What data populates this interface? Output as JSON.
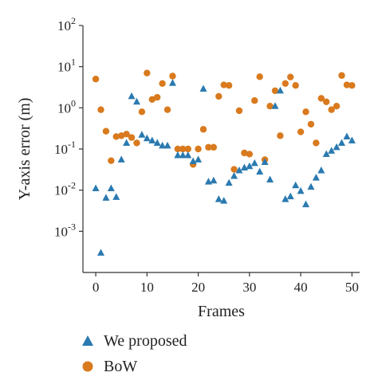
{
  "colors": {
    "we_proposed": "#2a7ab0",
    "bow": "#d97a1e",
    "axis": "#333333"
  },
  "chart_data": {
    "type": "scatter",
    "xlabel": "Frames",
    "ylabel": "Y-axis error (m)",
    "xlim": [
      -2.5,
      51.5
    ],
    "ylim": [
      0.0001,
      100
    ],
    "y_scale": "log",
    "grid": false,
    "legend_position": "bottom-left",
    "x_ticks": [
      {
        "value": 0,
        "label": "0"
      },
      {
        "value": 10,
        "label": "10"
      },
      {
        "value": 20,
        "label": "20"
      },
      {
        "value": 30,
        "label": "30"
      },
      {
        "value": 40,
        "label": "40"
      },
      {
        "value": 50,
        "label": "50"
      }
    ],
    "y_ticks": [
      {
        "value": 0.001,
        "base": "10",
        "exp": "-3"
      },
      {
        "value": 0.01,
        "base": "10",
        "exp": "-2"
      },
      {
        "value": 0.1,
        "base": "10",
        "exp": "-1"
      },
      {
        "value": 1,
        "base": "10",
        "exp": "0"
      },
      {
        "value": 10,
        "base": "10",
        "exp": "1"
      },
      {
        "value": 100,
        "base": "10",
        "exp": "2"
      }
    ],
    "series": [
      {
        "name": "We proposed",
        "marker": "triangle",
        "x": [
          0,
          1,
          2,
          3,
          4,
          5,
          6,
          7,
          8,
          9,
          10,
          11,
          12,
          13,
          14,
          15,
          16,
          17,
          18,
          19,
          20,
          21,
          22,
          23,
          24,
          25,
          26,
          27,
          28,
          29,
          30,
          31,
          32,
          33,
          34,
          35,
          36,
          37,
          38,
          39,
          40,
          41,
          42,
          43,
          44,
          45,
          46,
          47,
          48,
          49,
          50
        ],
        "y": [
          0.011,
          0.0003,
          0.0065,
          0.011,
          0.0068,
          0.055,
          0.14,
          1.9,
          1.4,
          0.22,
          0.18,
          0.16,
          0.14,
          0.12,
          0.12,
          4.0,
          0.07,
          0.07,
          0.07,
          0.05,
          0.055,
          2.9,
          0.016,
          0.017,
          0.006,
          0.0055,
          0.015,
          0.022,
          0.03,
          0.035,
          0.038,
          0.045,
          0.028,
          0.048,
          0.018,
          1.1,
          2.6,
          0.006,
          0.007,
          0.013,
          0.0095,
          0.0045,
          0.012,
          0.02,
          0.03,
          0.075,
          0.09,
          0.11,
          0.14,
          0.2,
          0.16
        ]
      },
      {
        "name": "BoW",
        "marker": "circle",
        "x": [
          0,
          1,
          2,
          3,
          4,
          5,
          6,
          7,
          8,
          9,
          10,
          11,
          12,
          13,
          14,
          15,
          16,
          17,
          18,
          19,
          20,
          21,
          22,
          23,
          24,
          25,
          26,
          27,
          28,
          29,
          30,
          31,
          32,
          33,
          34,
          35,
          36,
          37,
          38,
          39,
          40,
          41,
          42,
          43,
          44,
          45,
          46,
          47,
          48,
          49,
          50
        ],
        "y": [
          5.0,
          0.9,
          0.27,
          0.052,
          0.2,
          0.21,
          0.23,
          0.19,
          0.14,
          0.8,
          7.0,
          1.6,
          1.8,
          3.9,
          0.9,
          5.9,
          0.1,
          0.1,
          0.1,
          0.042,
          0.1,
          0.3,
          0.11,
          0.11,
          1.9,
          3.6,
          3.5,
          0.032,
          0.85,
          0.08,
          0.075,
          1.5,
          5.7,
          0.055,
          1.1,
          2.6,
          0.21,
          3.9,
          5.6,
          3.5,
          0.26,
          0.8,
          0.4,
          0.14,
          1.7,
          1.4,
          0.9,
          1.1,
          6.1,
          3.6,
          3.5
        ]
      }
    ]
  }
}
